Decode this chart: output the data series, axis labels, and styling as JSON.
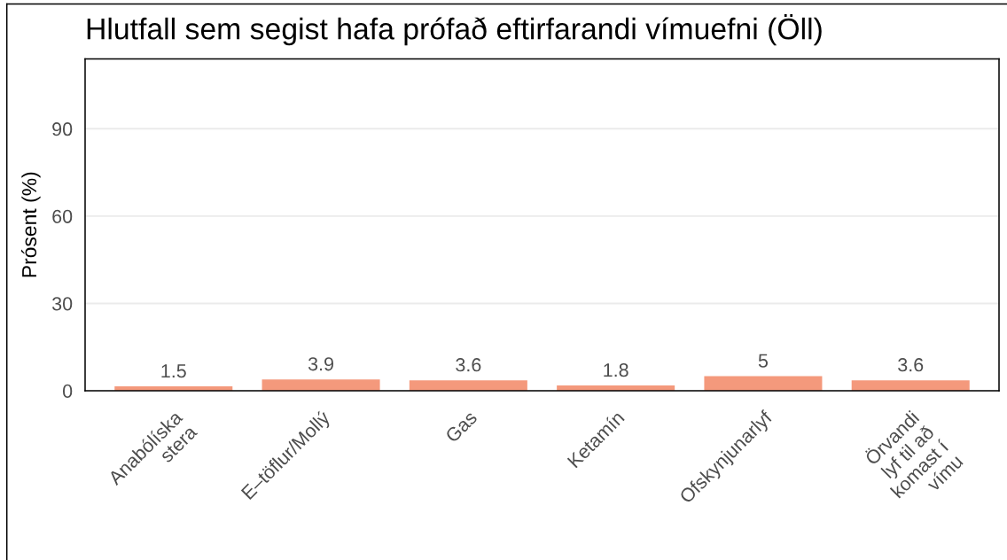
{
  "chart_data": {
    "type": "bar",
    "title": "Hlutfall sem segist hafa prófað eftirfarandi vímuefni (Öll)",
    "ylabel": "Prósent (%)",
    "categories": [
      "Anabólíska\nstera",
      "E–töflur/Mollý",
      "Gas",
      "Ketamín",
      "Ofskynjunarlyf",
      "Örvandi\nlyf til að\nkomast í\nvímu"
    ],
    "values": [
      1.5,
      3.9,
      3.6,
      1.8,
      5,
      3.6
    ],
    "color": "#f4997c",
    "ylim": [
      0,
      114
    ],
    "yticks": [
      0,
      30,
      60,
      90
    ],
    "grid": "y",
    "data_labels": true
  }
}
